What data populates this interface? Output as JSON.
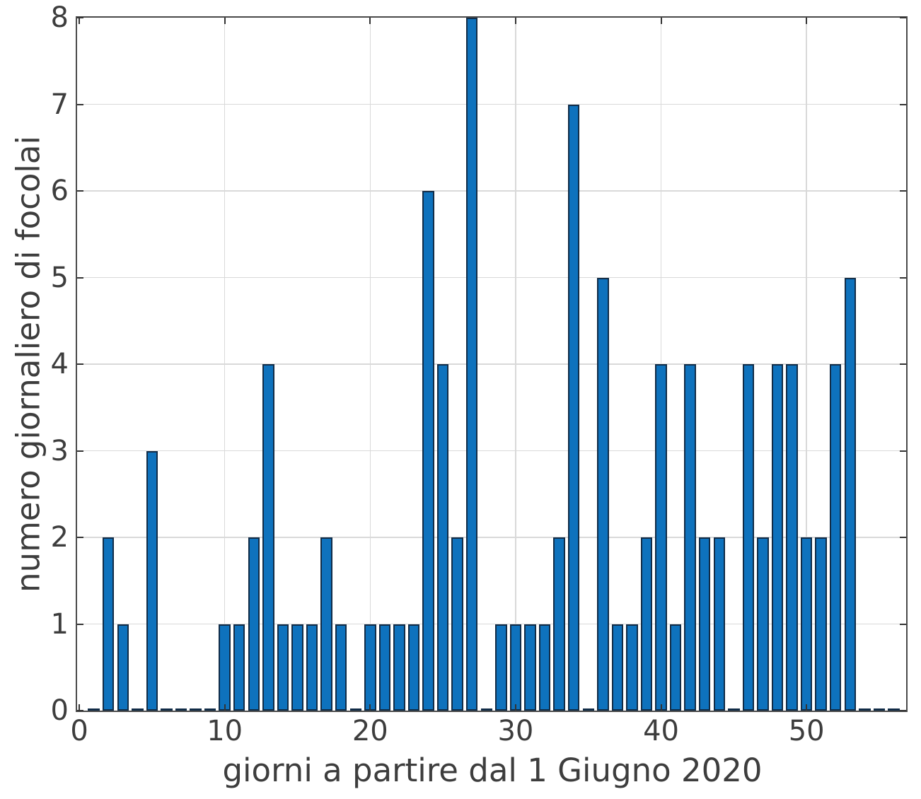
{
  "chart_data": {
    "type": "bar",
    "title": "",
    "xlabel": "giorni a partire dal 1 Giugno 2020",
    "ylabel": "numero giornaliero di focolai",
    "x_start_day": 1,
    "x": [
      1,
      2,
      3,
      4,
      5,
      6,
      7,
      8,
      9,
      10,
      11,
      12,
      13,
      14,
      15,
      16,
      17,
      18,
      19,
      20,
      21,
      22,
      23,
      24,
      25,
      26,
      27,
      28,
      29,
      30,
      31,
      32,
      33,
      34,
      35,
      36,
      37,
      38,
      39,
      40,
      41,
      42,
      43,
      44,
      45,
      46,
      47,
      48,
      49,
      50,
      51,
      52,
      53,
      54,
      55,
      56
    ],
    "values": [
      0,
      2,
      1,
      0,
      3,
      0,
      0,
      0,
      0,
      1,
      1,
      2,
      4,
      1,
      1,
      1,
      2,
      1,
      0,
      1,
      1,
      1,
      1,
      6,
      4,
      2,
      8,
      0,
      1,
      1,
      1,
      1,
      2,
      7,
      0,
      5,
      1,
      1,
      2,
      4,
      1,
      4,
      2,
      2,
      0,
      4,
      2,
      4,
      4,
      2,
      2,
      4,
      5,
      0,
      0,
      0
    ],
    "xlim": [
      -0.15,
      56.85
    ],
    "ylim": [
      0,
      8
    ],
    "xticks": [
      0,
      10,
      20,
      30,
      40,
      50
    ],
    "yticks": [
      0,
      1,
      2,
      3,
      4,
      5,
      6,
      7,
      8
    ],
    "bar_width": 0.8,
    "grid": true,
    "legend": null,
    "colors": {
      "bar_fill": "#0e72bd",
      "bar_edge": "#112c47",
      "grid": "#d9d9d9",
      "axis_box": "#4a4a4a",
      "tick": "#333333",
      "text": "#3d3d3d",
      "background": "#ffffff"
    }
  }
}
